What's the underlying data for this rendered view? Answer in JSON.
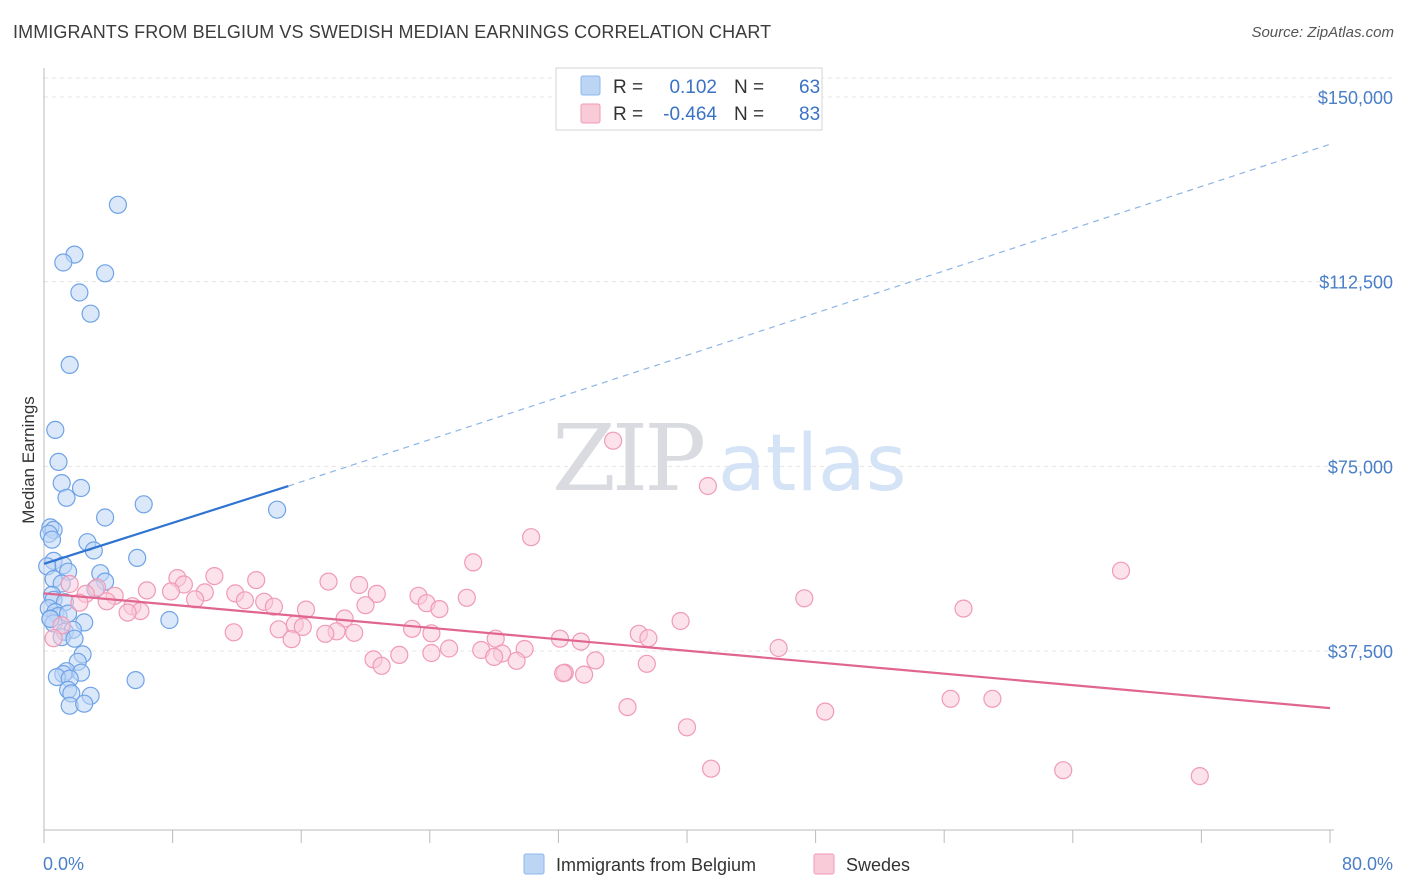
{
  "title": "IMMIGRANTS FROM BELGIUM VS SWEDISH MEDIAN EARNINGS CORRELATION CHART",
  "source": "Source: ZipAtlas.com",
  "watermark": {
    "zip": "ZIP",
    "atlas": "atlas"
  },
  "legend": [
    {
      "r_label": "R =",
      "r_value": "0.102",
      "n_label": "N =",
      "n_value": "63",
      "color": "#8db8ec",
      "fill": "#bdd5f5"
    },
    {
      "r_label": "R =",
      "r_value": "-0.464",
      "n_label": "N =",
      "n_value": "83",
      "color": "#f19bb7",
      "fill": "#f9cbd9"
    }
  ],
  "bottom_legend": [
    {
      "label": "Immigrants from Belgium",
      "color": "#8db8ec",
      "fill": "#bdd5f5"
    },
    {
      "label": "Swedes",
      "color": "#f19bb7",
      "fill": "#f9cbd9"
    }
  ],
  "chart_data": {
    "type": "scatter",
    "title": "IMMIGRANTS FROM BELGIUM VS SWEDISH MEDIAN EARNINGS CORRELATION CHART",
    "xlabel": "",
    "ylabel": "Median Earnings",
    "xlim": [
      0,
      80
    ],
    "ylim": [
      10000,
      155000
    ],
    "x_tick_labels": [
      "0.0%",
      "80.0%"
    ],
    "y_ticks": [
      {
        "value": 37500,
        "label": "$37,500"
      },
      {
        "value": 75000,
        "label": "$75,000"
      },
      {
        "value": 112500,
        "label": "$112,500"
      },
      {
        "value": 150000,
        "label": "$150,000"
      }
    ],
    "grid": true,
    "series": [
      {
        "name": "Immigrants from Belgium",
        "color": "#6fa3e6",
        "fill": "#bdd5f5",
        "trend": {
          "x": [
            0,
            15.2
          ],
          "y": [
            55200,
            71000
          ],
          "extend_to_x": 80,
          "extend_to_y": 140400,
          "stroke": "#2f74d0"
        },
        "points": [
          [
            4.6,
            128100
          ],
          [
            1.9,
            118000
          ],
          [
            1.2,
            116400
          ],
          [
            3.8,
            114200
          ],
          [
            2.2,
            110300
          ],
          [
            2.9,
            106000
          ],
          [
            1.6,
            95600
          ],
          [
            0.7,
            82400
          ],
          [
            0.9,
            75900
          ],
          [
            1.1,
            71600
          ],
          [
            2.3,
            70600
          ],
          [
            1.4,
            68600
          ],
          [
            6.2,
            67300
          ],
          [
            14.5,
            66200
          ],
          [
            3.8,
            64600
          ],
          [
            0.4,
            62600
          ],
          [
            0.6,
            62100
          ],
          [
            0.3,
            61300
          ],
          [
            0.5,
            60100
          ],
          [
            2.7,
            59600
          ],
          [
            3.1,
            57900
          ],
          [
            5.8,
            56400
          ],
          [
            0.6,
            55800
          ],
          [
            1.2,
            54900
          ],
          [
            0.2,
            54700
          ],
          [
            1.5,
            53600
          ],
          [
            3.5,
            53300
          ],
          [
            0.6,
            52100
          ],
          [
            3.8,
            51600
          ],
          [
            1.1,
            51200
          ],
          [
            3.2,
            50100
          ],
          [
            0.5,
            48900
          ],
          [
            0.6,
            47900
          ],
          [
            1.3,
            47400
          ],
          [
            0.3,
            46200
          ],
          [
            0.7,
            45400
          ],
          [
            0.9,
            44600
          ],
          [
            0.4,
            44100
          ],
          [
            0.6,
            43100
          ],
          [
            2.5,
            43300
          ],
          [
            7.8,
            43800
          ],
          [
            1.3,
            41400
          ],
          [
            1.8,
            41800
          ],
          [
            1.1,
            40300
          ],
          [
            1.9,
            40000
          ],
          [
            2.4,
            36800
          ],
          [
            2.1,
            35300
          ],
          [
            1.4,
            33400
          ],
          [
            1.2,
            32800
          ],
          [
            2.3,
            33100
          ],
          [
            0.8,
            32200
          ],
          [
            1.6,
            31900
          ],
          [
            5.7,
            31600
          ],
          [
            1.5,
            29600
          ],
          [
            1.7,
            28900
          ],
          [
            2.9,
            28400
          ],
          [
            1.6,
            26400
          ],
          [
            2.5,
            26800
          ],
          [
            1.5,
            45100
          ],
          [
            0.4,
            44000
          ]
        ]
      },
      {
        "name": "Swedes",
        "color": "#f09ab7",
        "fill": "#f9cbd9",
        "trend": {
          "x": [
            0,
            80
          ],
          "y": [
            49200,
            25900
          ],
          "stroke": "#e0668f"
        },
        "points": [
          [
            35.4,
            80200
          ],
          [
            41.3,
            71000
          ],
          [
            30.3,
            60600
          ],
          [
            26.7,
            55500
          ],
          [
            67.0,
            53800
          ],
          [
            8.3,
            52300
          ],
          [
            10.6,
            52700
          ],
          [
            13.2,
            51900
          ],
          [
            17.7,
            51600
          ],
          [
            1.6,
            51100
          ],
          [
            3.3,
            50400
          ],
          [
            8.7,
            51000
          ],
          [
            19.6,
            50900
          ],
          [
            6.4,
            49800
          ],
          [
            7.9,
            49600
          ],
          [
            10.0,
            49400
          ],
          [
            2.6,
            49100
          ],
          [
            20.7,
            49100
          ],
          [
            11.9,
            49200
          ],
          [
            4.4,
            48700
          ],
          [
            23.3,
            48700
          ],
          [
            26.3,
            48300
          ],
          [
            47.3,
            48200
          ],
          [
            9.4,
            48000
          ],
          [
            12.5,
            47800
          ],
          [
            3.9,
            47600
          ],
          [
            13.7,
            47500
          ],
          [
            2.2,
            47300
          ],
          [
            23.8,
            47200
          ],
          [
            20.0,
            46800
          ],
          [
            5.5,
            46600
          ],
          [
            14.3,
            46500
          ],
          [
            24.6,
            46000
          ],
          [
            16.3,
            45900
          ],
          [
            57.2,
            46100
          ],
          [
            6.0,
            45600
          ],
          [
            5.2,
            45300
          ],
          [
            18.7,
            44100
          ],
          [
            39.6,
            43600
          ],
          [
            15.6,
            42900
          ],
          [
            1.1,
            42700
          ],
          [
            16.1,
            42400
          ],
          [
            22.9,
            42000
          ],
          [
            14.6,
            41900
          ],
          [
            18.2,
            41500
          ],
          [
            19.3,
            41200
          ],
          [
            24.1,
            41100
          ],
          [
            17.5,
            41000
          ],
          [
            37.0,
            41000
          ],
          [
            11.8,
            41300
          ],
          [
            28.1,
            40000
          ],
          [
            32.1,
            40000
          ],
          [
            37.6,
            40100
          ],
          [
            15.4,
            39900
          ],
          [
            33.4,
            39400
          ],
          [
            25.2,
            38000
          ],
          [
            27.2,
            37700
          ],
          [
            29.9,
            37900
          ],
          [
            45.7,
            38100
          ],
          [
            28.5,
            37000
          ],
          [
            22.1,
            36700
          ],
          [
            20.5,
            35800
          ],
          [
            34.3,
            35600
          ],
          [
            29.4,
            35500
          ],
          [
            37.5,
            34900
          ],
          [
            21.0,
            34500
          ],
          [
            32.4,
            33100
          ],
          [
            33.6,
            32700
          ],
          [
            24.1,
            37100
          ],
          [
            28.0,
            36300
          ],
          [
            48.6,
            25200
          ],
          [
            56.4,
            27800
          ],
          [
            59.0,
            27800
          ],
          [
            36.3,
            26100
          ],
          [
            40.0,
            22000
          ],
          [
            41.5,
            13600
          ],
          [
            63.4,
            13300
          ],
          [
            71.9,
            12100
          ],
          [
            0.6,
            40100
          ],
          [
            32.3,
            33000
          ]
        ]
      }
    ]
  }
}
